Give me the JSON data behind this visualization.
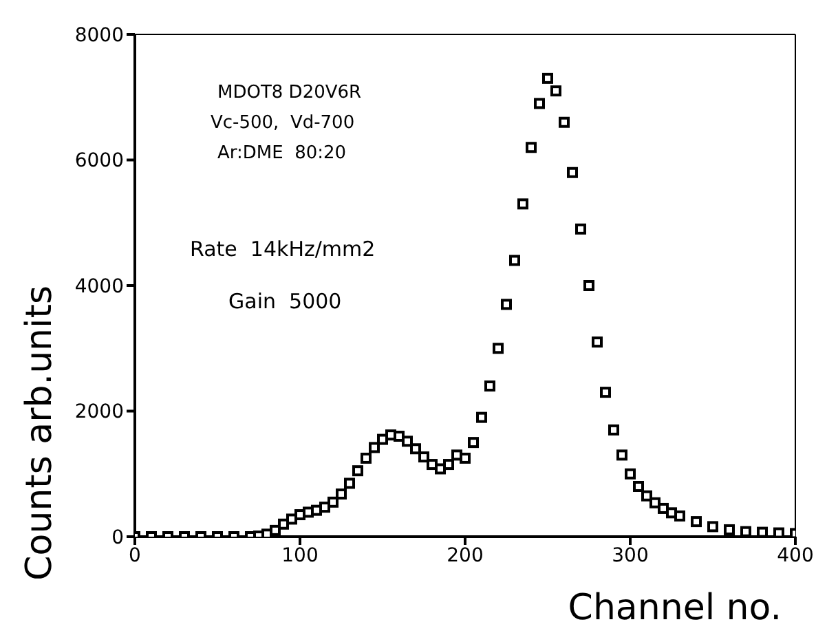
{
  "chart_data": {
    "type": "scatter",
    "xlabel": "Channel no.",
    "ylabel": "Counts  arb.units",
    "annotations": [
      "MDOT8 D20V6R",
      "Vc-500,  Vd-700",
      "Ar:DME  80:20",
      "Rate  14kHz/mm2",
      "Gain  5000"
    ],
    "x": [
      0,
      10,
      20,
      30,
      40,
      50,
      60,
      70,
      75,
      80,
      85,
      90,
      95,
      100,
      105,
      110,
      115,
      120,
      125,
      130,
      135,
      140,
      145,
      150,
      155,
      160,
      165,
      170,
      175,
      180,
      185,
      190,
      195,
      200,
      205,
      210,
      215,
      220,
      225,
      230,
      235,
      240,
      245,
      250,
      255,
      260,
      265,
      270,
      275,
      280,
      285,
      290,
      295,
      300,
      305,
      310,
      315,
      320,
      325,
      330,
      340,
      350,
      360,
      370,
      380,
      390,
      400
    ],
    "series": [
      {
        "color": "#000000",
        "values": [
          0,
          0,
          0,
          0,
          0,
          0,
          0,
          0,
          10,
          40,
          100,
          200,
          280,
          350,
          390,
          420,
          470,
          550,
          680,
          850,
          1050,
          1250,
          1420,
          1550,
          1620,
          1600,
          1520,
          1400,
          1270,
          1150,
          1080,
          1150,
          1300,
          1250,
          1500,
          1900,
          2400,
          3000,
          3700,
          4400,
          5300,
          6200,
          6900,
          7300,
          7100,
          6600,
          5800,
          4900,
          4000,
          3100,
          2300,
          1700,
          1300,
          1000,
          800,
          650,
          540,
          450,
          380,
          330,
          240,
          160,
          110,
          80,
          70,
          60,
          50
        ]
      }
    ],
    "xlim": [
      0,
      400
    ],
    "xticks": [
      0,
      100,
      200,
      300,
      400
    ],
    "ylim": [
      0,
      8000
    ],
    "yticks": [
      0,
      2000,
      4000,
      6000,
      8000
    ],
    "grid": false,
    "legend": false,
    "marker": "square"
  }
}
